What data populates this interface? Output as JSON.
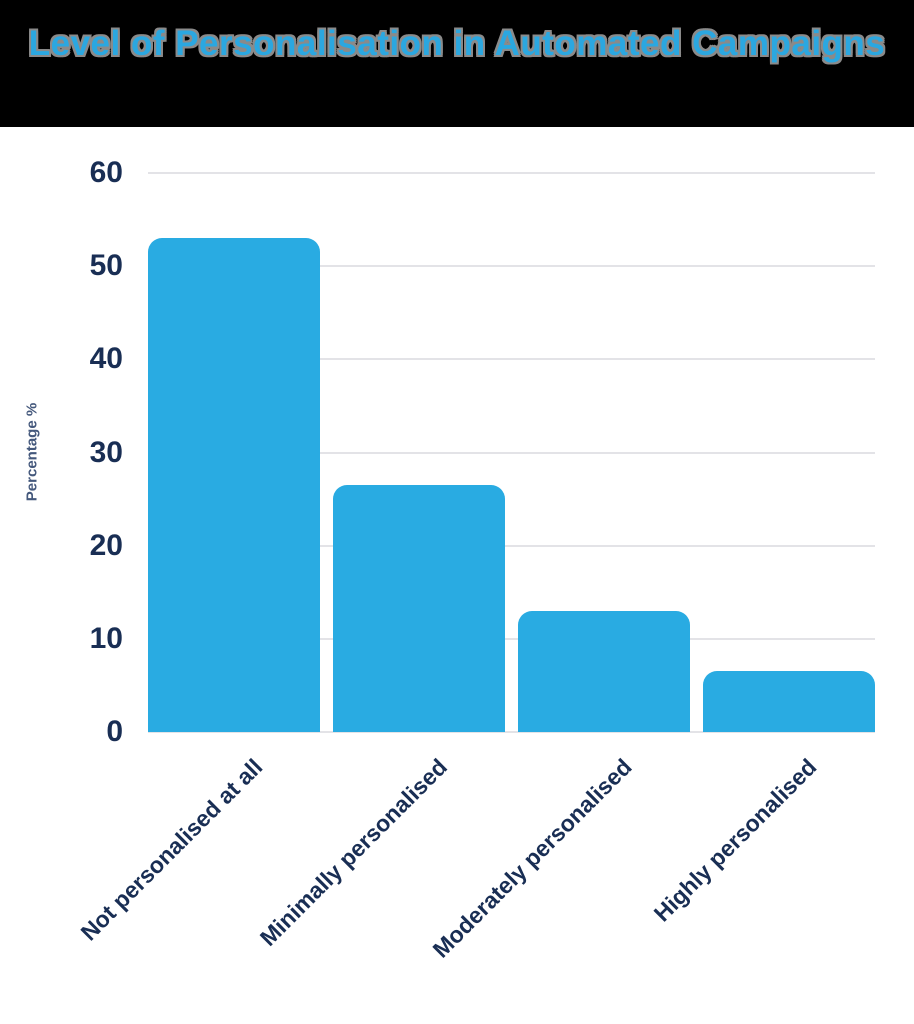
{
  "header": {
    "title": "Level of Personalisation in Automated Campaigns"
  },
  "chart_data": {
    "type": "bar",
    "title": "Level of Personalisation in Automated Campaigns",
    "categories": [
      "Not personalised at all",
      "Minimally personalised",
      "Moderately personalised",
      "Highly personalised"
    ],
    "values": [
      53,
      26.5,
      13,
      6.5
    ],
    "xlabel": "",
    "ylabel": "Percentage %",
    "ylim": [
      0,
      60
    ],
    "yticks": [
      0,
      10,
      20,
      30,
      40,
      50,
      60
    ],
    "grid": true,
    "legend": false,
    "bar_color": "#29ABE2"
  },
  "colors": {
    "banner_bg": "#000000",
    "chart_bg": "#ffffff",
    "bar": "#29ABE2",
    "title_text": "#2BA7E0",
    "title_outline": "#8a8a8a",
    "axis_text": "#192e54",
    "ylabel_text": "#44587c",
    "gridline": "#e3e3e7"
  }
}
